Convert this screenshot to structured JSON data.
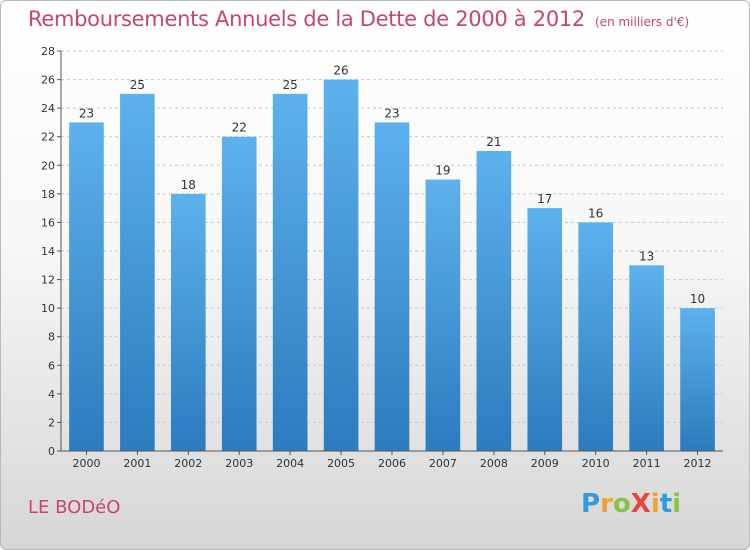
{
  "title": "Remboursements Annuels de la Dette de 2000 à 2012",
  "unit": "(en milliers d'€)",
  "place": "LE BODéO",
  "logo": {
    "parts": [
      "P",
      "r",
      "o",
      "X",
      "i",
      "t",
      "i"
    ]
  },
  "colors": {
    "bar_top": "#5db1ec",
    "bar_bottom": "#2b7bbe",
    "title": "#c8466e",
    "grid": "#c8c8c8"
  },
  "chart_data": {
    "type": "bar",
    "categories": [
      "2000",
      "2001",
      "2002",
      "2003",
      "2004",
      "2005",
      "2006",
      "2007",
      "2008",
      "2009",
      "2010",
      "2011",
      "2012"
    ],
    "values": [
      23,
      25,
      18,
      22,
      25,
      26,
      23,
      19,
      21,
      17,
      16,
      13,
      10
    ],
    "ylim": [
      0,
      28
    ],
    "yticks": [
      0,
      2,
      4,
      6,
      8,
      10,
      12,
      14,
      16,
      18,
      20,
      22,
      24,
      26,
      28
    ],
    "grid": true,
    "title": "Remboursements Annuels de la Dette de 2000 à 2012",
    "xlabel": "",
    "ylabel": ""
  }
}
